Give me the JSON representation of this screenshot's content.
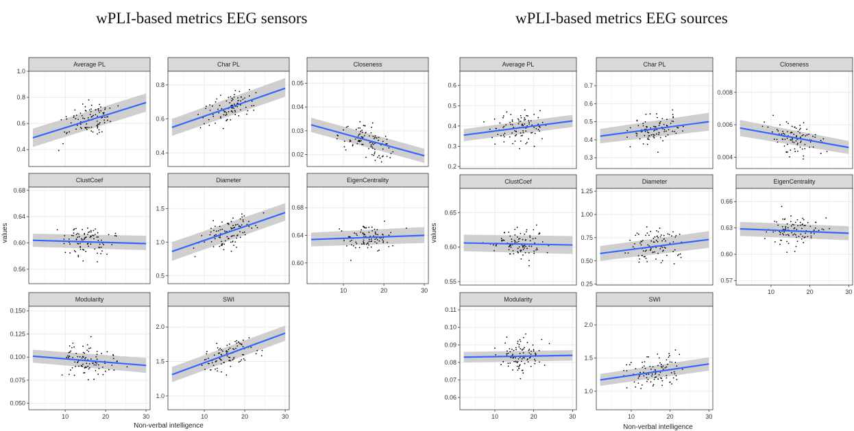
{
  "figures": [
    {
      "title": "wPLI-based metrics EEG sensors",
      "ylabel": "values",
      "xlabel": "Non-verbal intelligence"
    },
    {
      "title": "wPLI-based metrics EEG sources",
      "ylabel": "values",
      "xlabel": "Non-verbal intelligence"
    }
  ],
  "colors": {
    "strip_fill": "#d9d9d9",
    "panel_border": "#333333",
    "grid": "#ebebeb",
    "fit_line": "#3366ff",
    "ci_band": "#bfbfbf",
    "point": "#000000"
  },
  "chart_data": [
    {
      "type": "scatter",
      "title": "wPLI-based metrics EEG sensors",
      "xlabel": "Non-verbal intelligence",
      "ylabel": "values",
      "xlim": [
        1,
        31
      ],
      "xticks": [
        10,
        20,
        30
      ],
      "facets": [
        {
          "name": "Average PL",
          "ylim": [
            0.27,
            1.0
          ],
          "yticks": [
            0.4,
            0.6,
            0.8,
            1.0
          ],
          "yfmt": 1,
          "fit": {
            "x": [
              2,
              30
            ],
            "y": [
              0.49,
              0.76
            ]
          },
          "ci_low": [
            0.42,
            0.69
          ],
          "ci_high": [
            0.56,
            0.83
          ]
        },
        {
          "name": "Char PL",
          "ylim": [
            0.32,
            0.88
          ],
          "yticks": [
            0.4,
            0.6,
            0.8
          ],
          "yfmt": 1,
          "fit": {
            "x": [
              2,
              30
            ],
            "y": [
              0.55,
              0.78
            ]
          },
          "ci_low": [
            0.5,
            0.73
          ],
          "ci_high": [
            0.6,
            0.84
          ]
        },
        {
          "name": "Closeness",
          "ylim": [
            0.015,
            0.055
          ],
          "yticks": [
            0.02,
            0.03,
            0.04,
            0.05
          ],
          "yfmt": 2,
          "fit": {
            "x": [
              2,
              30
            ],
            "y": [
              0.0325,
              0.0195
            ]
          },
          "ci_low": [
            0.0295,
            0.0165
          ],
          "ci_high": [
            0.0355,
            0.0225
          ]
        },
        {
          "name": "ClustCoef",
          "ylim": [
            0.538,
            0.685
          ],
          "yticks": [
            0.56,
            0.6,
            0.64,
            0.68
          ],
          "yfmt": 2,
          "fit": {
            "x": [
              2,
              30
            ],
            "y": [
              0.604,
              0.599
            ]
          },
          "ci_low": [
            0.594,
            0.589
          ],
          "ci_high": [
            0.614,
            0.611
          ]
        },
        {
          "name": "Diameter",
          "ylim": [
            0.38,
            1.82
          ],
          "yticks": [
            0.5,
            1.0,
            1.5
          ],
          "yfmt": 1,
          "fit": {
            "x": [
              2,
              30
            ],
            "y": [
              0.86,
              1.44
            ]
          },
          "ci_low": [
            0.72,
            1.32
          ],
          "ci_high": [
            1.0,
            1.58
          ]
        },
        {
          "name": "EigenCentrality",
          "ylim": [
            0.57,
            0.71
          ],
          "yticks": [
            0.6,
            0.64,
            0.68
          ],
          "yfmt": 2,
          "fit": {
            "x": [
              2,
              30
            ],
            "y": [
              0.634,
              0.64
            ]
          },
          "ci_low": [
            0.624,
            0.629
          ],
          "ci_high": [
            0.644,
            0.652
          ]
        },
        {
          "name": "Modularity",
          "ylim": [
            0.043,
            0.155
          ],
          "yticks": [
            0.05,
            0.075,
            0.1,
            0.125,
            0.15
          ],
          "yfmt": 3,
          "fit": {
            "x": [
              2,
              30
            ],
            "y": [
              0.101,
              0.091
            ]
          },
          "ci_low": [
            0.094,
            0.083
          ],
          "ci_high": [
            0.108,
            0.099
          ]
        },
        {
          "name": "SWI",
          "ylim": [
            0.8,
            2.3
          ],
          "yticks": [
            1.0,
            1.5,
            2.0
          ],
          "yfmt": 1,
          "fit": {
            "x": [
              2,
              30
            ],
            "y": [
              1.31,
              1.91
            ]
          },
          "ci_low": [
            1.2,
            1.8
          ],
          "ci_high": [
            1.42,
            2.02
          ]
        }
      ]
    },
    {
      "type": "scatter",
      "title": "wPLI-based metrics EEG sources",
      "xlabel": "Non-verbal intelligence",
      "ylabel": "values",
      "xlim": [
        1,
        31
      ],
      "xticks": [
        10,
        20,
        30
      ],
      "facets": [
        {
          "name": "Average PL",
          "ylim": [
            0.19,
            0.67
          ],
          "yticks": [
            0.2,
            0.3,
            0.4,
            0.5,
            0.6
          ],
          "yfmt": 1,
          "fit": {
            "x": [
              2,
              30
            ],
            "y": [
              0.355,
              0.425
            ]
          },
          "ci_low": [
            0.325,
            0.395
          ],
          "ci_high": [
            0.385,
            0.455
          ]
        },
        {
          "name": "Char PL",
          "ylim": [
            0.24,
            0.78
          ],
          "yticks": [
            0.3,
            0.4,
            0.5,
            0.6,
            0.7
          ],
          "yfmt": 1,
          "fit": {
            "x": [
              2,
              30
            ],
            "y": [
              0.42,
              0.5
            ]
          },
          "ci_low": [
            0.38,
            0.45
          ],
          "ci_high": [
            0.46,
            0.55
          ]
        },
        {
          "name": "Closeness",
          "ylim": [
            0.0033,
            0.0093
          ],
          "yticks": [
            0.004,
            0.006,
            0.008
          ],
          "yfmt": 3,
          "fit": {
            "x": [
              2,
              30
            ],
            "y": [
              0.0058,
              0.0046
            ]
          },
          "ci_low": [
            0.0053,
            0.0042
          ],
          "ci_high": [
            0.0063,
            0.005
          ]
        },
        {
          "name": "ClustCoef",
          "ylim": [
            0.545,
            0.685
          ],
          "yticks": [
            0.55,
            0.6,
            0.65
          ],
          "yfmt": 2,
          "fit": {
            "x": [
              2,
              30
            ],
            "y": [
              0.606,
              0.603
            ]
          },
          "ci_low": [
            0.594,
            0.59
          ],
          "ci_high": [
            0.618,
            0.616
          ]
        },
        {
          "name": "Diameter",
          "ylim": [
            0.24,
            1.28
          ],
          "yticks": [
            0.25,
            0.5,
            0.75,
            1.0,
            1.25
          ],
          "yfmt": 2,
          "fit": {
            "x": [
              2,
              30
            ],
            "y": [
              0.58,
              0.73
            ]
          },
          "ci_low": [
            0.5,
            0.64
          ],
          "ci_high": [
            0.66,
            0.82
          ]
        },
        {
          "name": "EigenCentrality",
          "ylim": [
            0.565,
            0.675
          ],
          "yticks": [
            0.57,
            0.6,
            0.63,
            0.66
          ],
          "yfmt": 2,
          "fit": {
            "x": [
              2,
              30
            ],
            "y": [
              0.629,
              0.624
            ]
          },
          "ci_low": [
            0.621,
            0.616
          ],
          "ci_high": [
            0.637,
            0.632
          ]
        },
        {
          "name": "Modularity",
          "ylim": [
            0.053,
            0.112
          ],
          "yticks": [
            0.06,
            0.07,
            0.08,
            0.09,
            0.1,
            0.11
          ],
          "yfmt": 2,
          "fit": {
            "x": [
              2,
              30
            ],
            "y": [
              0.083,
              0.084
            ]
          },
          "ci_low": [
            0.08,
            0.081
          ],
          "ci_high": [
            0.086,
            0.087
          ]
        },
        {
          "name": "SWI",
          "ylim": [
            0.72,
            2.28
          ],
          "yticks": [
            1.0,
            1.5,
            2.0
          ],
          "yfmt": 1,
          "fit": {
            "x": [
              2,
              30
            ],
            "y": [
              1.17,
              1.41
            ]
          },
          "ci_low": [
            1.08,
            1.31
          ],
          "ci_high": [
            1.26,
            1.51
          ]
        }
      ]
    }
  ]
}
